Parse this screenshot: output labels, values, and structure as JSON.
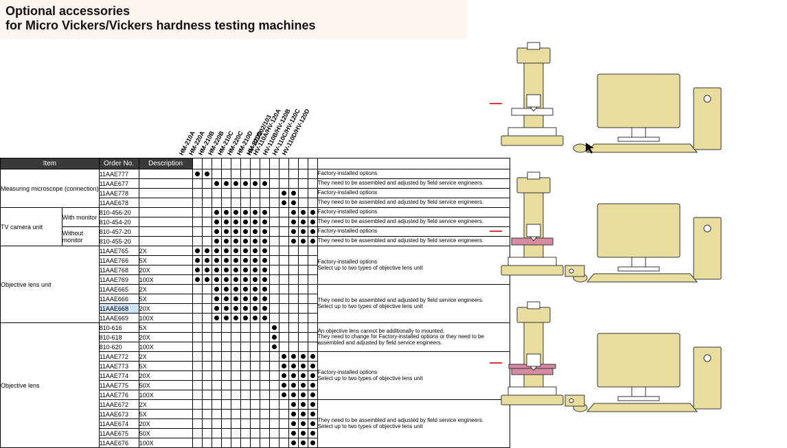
{
  "title": {
    "line1": "Optional accessories",
    "line2": "for Micro Vickers/Vickers hardness testing machines"
  },
  "columns": {
    "item": "Item",
    "order": "Order No.",
    "desc": "Description"
  },
  "models": [
    "HM-210A",
    "HM-220A",
    "HM-210B",
    "HM-220B",
    "HM-210C",
    "HM-220C",
    "HM-210D",
    "HM-220D",
    "HV-101/102/103",
    "HV-110A/HV-120A",
    "HV-110B/HV-120B",
    "HV-110C/HV-120C",
    "HV-110D/HV-120D"
  ],
  "notes": {
    "fio": "Factory-installed options",
    "assy": "They need to be assembled and adjusted by field service engineers.",
    "fio_sel2": "Factory-installed options\nSelect up to two types of objective lens unit",
    "assy_sel2": "They need to be assembled and adjusted by field service engineers.\nSelect up to two types of objective lens unit",
    "objlens_no_add": "An objective lens cannot be additionally to mounted.\nThey need to change for Factory-installed options or they need to be assembled and adjusted by field service engineers."
  },
  "sections": [
    {
      "item": "Measuring microscope (connection)",
      "item_rowspan": 4,
      "rows": [
        {
          "order": "11AAE777",
          "desc": "",
          "dots": [
            1,
            1,
            0,
            0,
            0,
            0,
            0,
            0,
            0,
            0,
            0,
            0,
            0
          ],
          "note": "fio",
          "note_rowspan": 1
        },
        {
          "order": "11AAE677",
          "desc": "",
          "dots": [
            0,
            0,
            1,
            1,
            1,
            1,
            1,
            1,
            0,
            0,
            0,
            0,
            0
          ],
          "note": "assy",
          "note_rowspan": 1
        },
        {
          "order": "11AAE778",
          "desc": "",
          "dots": [
            0,
            0,
            0,
            0,
            0,
            0,
            0,
            0,
            0,
            1,
            1,
            0,
            0
          ],
          "note": "fio",
          "note_rowspan": 1
        },
        {
          "order": "11AAE678",
          "desc": "",
          "dots": [
            0,
            0,
            0,
            0,
            0,
            0,
            0,
            0,
            0,
            1,
            1,
            0,
            0
          ],
          "note": "assy",
          "note_rowspan": 1
        }
      ]
    },
    {
      "item": "TV camera unit",
      "item_rowspan": 4,
      "subs": [
        {
          "label": "With monitor",
          "rowspan": 2
        },
        {
          "label": "Without monitor",
          "rowspan": 2
        }
      ],
      "rows": [
        {
          "order": "810-456-20",
          "desc": "",
          "dots": [
            0,
            0,
            1,
            1,
            1,
            1,
            1,
            1,
            0,
            0,
            1,
            1,
            1
          ],
          "note": "fio",
          "note_rowspan": 1,
          "sub": 0
        },
        {
          "order": "810-454-20",
          "desc": "",
          "dots": [
            0,
            0,
            1,
            1,
            1,
            1,
            1,
            1,
            0,
            0,
            1,
            1,
            1
          ],
          "note": "assy",
          "note_rowspan": 1,
          "sub": 0
        },
        {
          "order": "810-457-20",
          "desc": "",
          "dots": [
            0,
            0,
            1,
            1,
            1,
            1,
            1,
            1,
            0,
            0,
            1,
            1,
            1
          ],
          "note": "fio",
          "note_rowspan": 1,
          "sub": 1
        },
        {
          "order": "810-455-20",
          "desc": "",
          "dots": [
            0,
            0,
            1,
            1,
            1,
            1,
            1,
            1,
            0,
            0,
            1,
            1,
            1
          ],
          "note": "assy",
          "note_rowspan": 1,
          "sub": 1
        }
      ]
    },
    {
      "item": "Objective lens unit",
      "item_rowspan": 8,
      "rows": [
        {
          "order": "11AAE765",
          "desc": "2X",
          "dots": [
            1,
            1,
            1,
            1,
            1,
            1,
            1,
            1,
            0,
            0,
            0,
            0,
            0
          ],
          "note": "fio_sel2",
          "note_rowspan": 4
        },
        {
          "order": "11AAE766",
          "desc": "5X",
          "dots": [
            1,
            1,
            1,
            1,
            1,
            1,
            1,
            1,
            0,
            0,
            0,
            0,
            0
          ]
        },
        {
          "order": "11AAE768",
          "desc": "20X",
          "dots": [
            1,
            1,
            1,
            1,
            1,
            1,
            1,
            1,
            0,
            0,
            0,
            0,
            0
          ]
        },
        {
          "order": "11AAE769",
          "desc": "100X",
          "dots": [
            1,
            1,
            1,
            1,
            1,
            1,
            1,
            1,
            0,
            0,
            0,
            0,
            0
          ]
        },
        {
          "order": "11AAE665",
          "desc": "2X",
          "dots": [
            0,
            0,
            1,
            1,
            1,
            1,
            1,
            1,
            0,
            0,
            0,
            0,
            0
          ],
          "note": "assy_sel2",
          "note_rowspan": 4
        },
        {
          "order": "11AAE666",
          "desc": "5X",
          "dots": [
            0,
            0,
            1,
            1,
            1,
            1,
            1,
            1,
            0,
            0,
            0,
            0,
            0
          ]
        },
        {
          "order": "11AAE668",
          "desc": "20X",
          "dots": [
            0,
            0,
            1,
            1,
            1,
            1,
            1,
            1,
            0,
            0,
            0,
            0,
            0
          ],
          "hl": true
        },
        {
          "order": "11AAE669",
          "desc": "100X",
          "dots": [
            0,
            0,
            1,
            1,
            1,
            1,
            1,
            1,
            0,
            0,
            0,
            0,
            0
          ]
        }
      ]
    },
    {
      "item": "Objective lens",
      "item_rowspan": 13,
      "rows": [
        {
          "order": "810-616",
          "desc": "5X",
          "dots": [
            0,
            0,
            0,
            0,
            0,
            0,
            0,
            0,
            1,
            0,
            0,
            0,
            0
          ],
          "note": "objlens_no_add",
          "note_rowspan": 3
        },
        {
          "order": "810-618",
          "desc": "20X",
          "dots": [
            0,
            0,
            0,
            0,
            0,
            0,
            0,
            0,
            1,
            0,
            0,
            0,
            0
          ]
        },
        {
          "order": "810-620",
          "desc": "100X",
          "dots": [
            0,
            0,
            0,
            0,
            0,
            0,
            0,
            0,
            1,
            0,
            0,
            0,
            0
          ]
        },
        {
          "order": "11AAE772",
          "desc": "2X",
          "dots": [
            0,
            0,
            0,
            0,
            0,
            0,
            0,
            0,
            0,
            1,
            1,
            1,
            1
          ],
          "note": "fio_sel2",
          "note_rowspan": 5
        },
        {
          "order": "11AAE773",
          "desc": "5X",
          "dots": [
            0,
            0,
            0,
            0,
            0,
            0,
            0,
            0,
            0,
            1,
            1,
            1,
            1
          ]
        },
        {
          "order": "11AAE774",
          "desc": "20X",
          "dots": [
            0,
            0,
            0,
            0,
            0,
            0,
            0,
            0,
            0,
            1,
            1,
            1,
            1
          ]
        },
        {
          "order": "11AAE775",
          "desc": "50X",
          "dots": [
            0,
            0,
            0,
            0,
            0,
            0,
            0,
            0,
            0,
            1,
            1,
            1,
            1
          ]
        },
        {
          "order": "11AAE776",
          "desc": "100X",
          "dots": [
            0,
            0,
            0,
            0,
            0,
            0,
            0,
            0,
            0,
            1,
            1,
            1,
            1
          ]
        },
        {
          "order": "11AAE672",
          "desc": "2X",
          "dots": [
            0,
            0,
            0,
            0,
            0,
            0,
            0,
            0,
            0,
            0,
            1,
            1,
            1
          ],
          "note": "assy_sel2",
          "note_rowspan": 5
        },
        {
          "order": "11AAE673",
          "desc": "5X",
          "dots": [
            0,
            0,
            0,
            0,
            0,
            0,
            0,
            0,
            0,
            0,
            1,
            1,
            1
          ]
        },
        {
          "order": "11AAE674",
          "desc": "20X",
          "dots": [
            0,
            0,
            0,
            0,
            0,
            0,
            0,
            0,
            0,
            0,
            1,
            1,
            1
          ]
        },
        {
          "order": "11AAE675",
          "desc": "50X",
          "dots": [
            0,
            0,
            0,
            0,
            0,
            0,
            0,
            0,
            0,
            0,
            1,
            1,
            1
          ]
        },
        {
          "order": "11AAE676",
          "desc": "100X",
          "dots": [
            0,
            0,
            0,
            0,
            0,
            0,
            0,
            0,
            0,
            0,
            1,
            1,
            1
          ]
        }
      ]
    }
  ],
  "diagram_colors": {
    "fill": "#e8dc9e",
    "stroke": "#333333",
    "stage": "#d88aa0",
    "screen": "#e8dc9e"
  }
}
